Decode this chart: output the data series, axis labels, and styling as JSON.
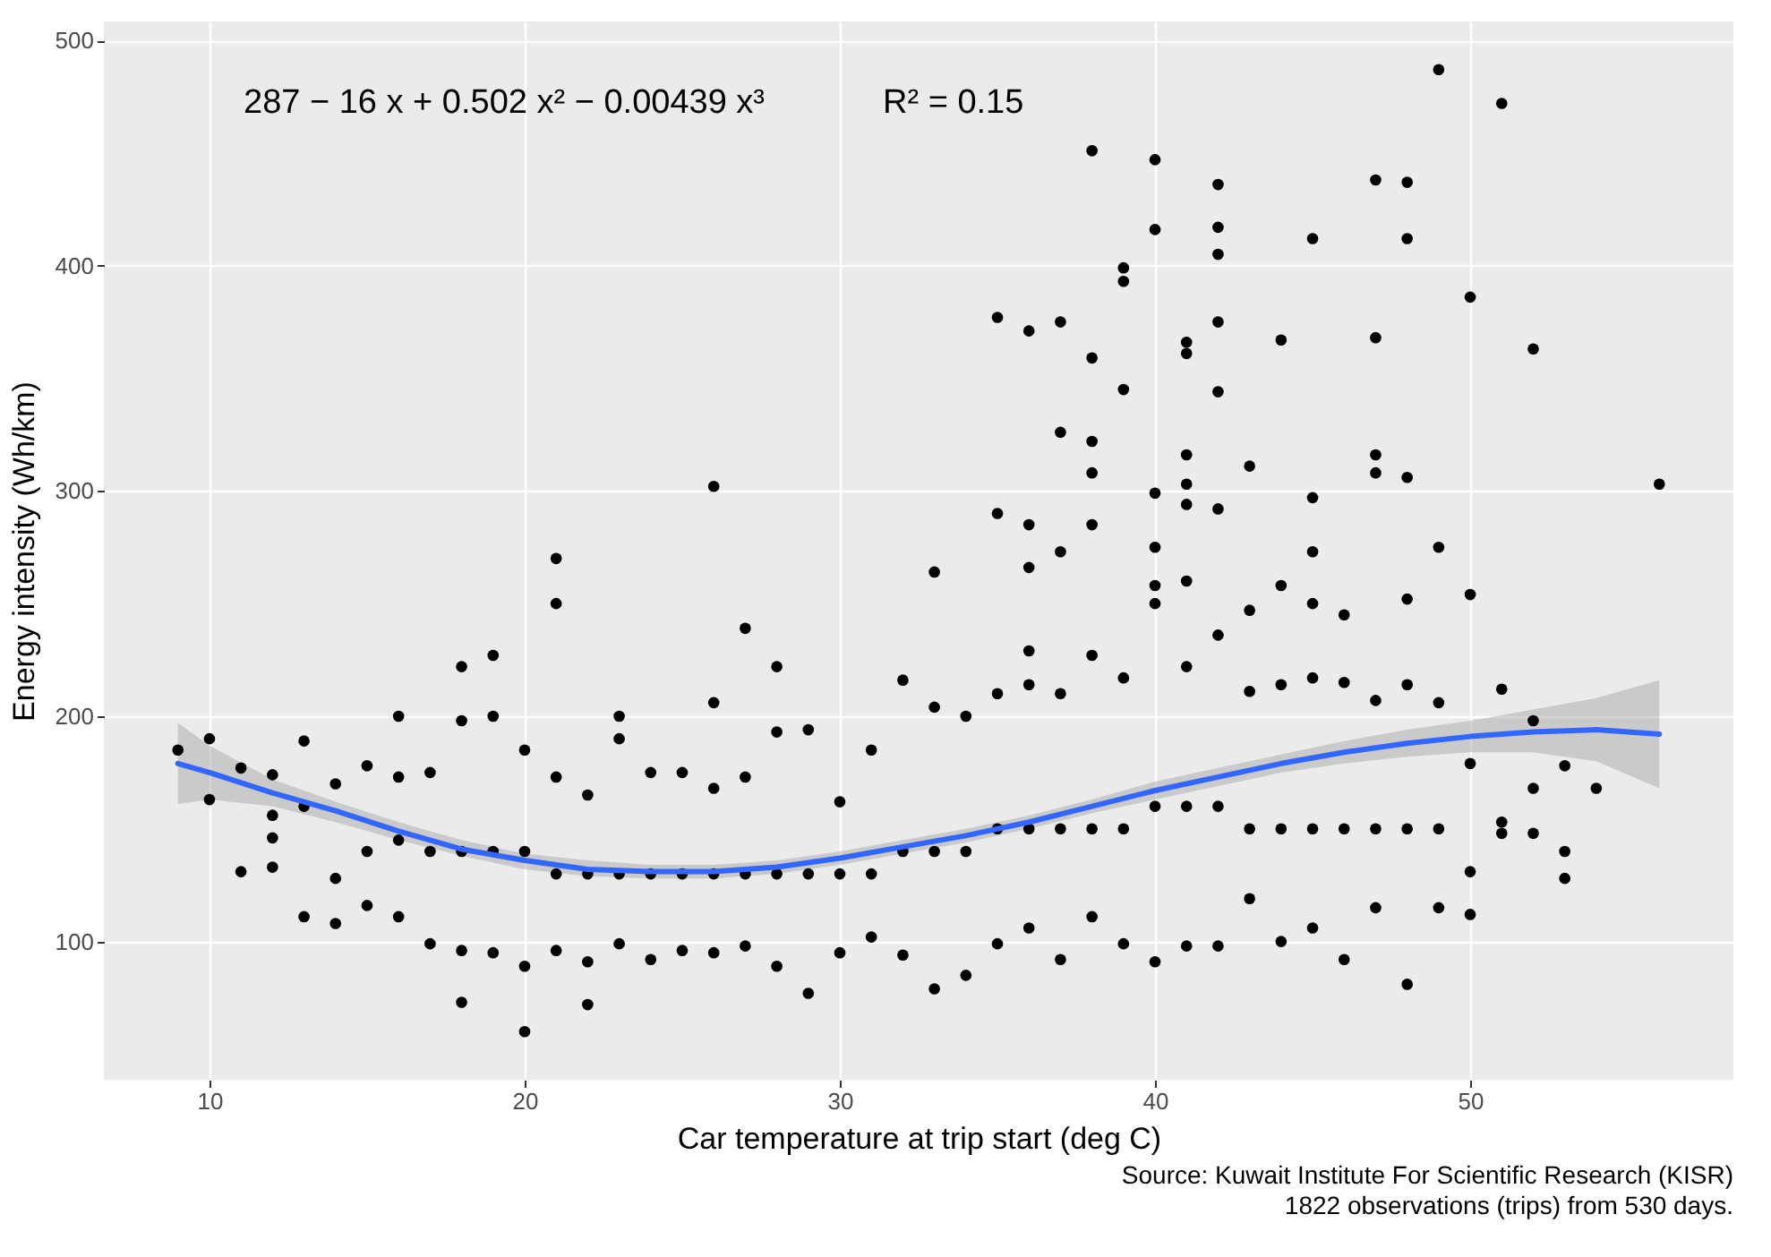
{
  "chart_data": {
    "type": "scatter",
    "xlabel": "Car temperature at trip start (deg C)",
    "ylabel": "Energy intensity (Wh/km)",
    "annotations": [
      "287 − 16 x + 0.502 x² − 0.00439 x³",
      "R² = 0.15",
      "Source: Kuwait Institute For Scientific Research (KISR)",
      "1822 observations (trips) from 530 days."
    ],
    "xlim": [
      6.65,
      58.35
    ],
    "ylim": [
      38.65,
      508.35
    ],
    "xticks": [
      10,
      20,
      30,
      40,
      50
    ],
    "yticks": [
      100,
      200,
      300,
      400,
      500
    ],
    "grid": true,
    "series": [
      {
        "color": "#000000",
        "marker": "circle",
        "x": [
          9,
          10,
          10,
          11,
          11,
          12,
          12,
          12,
          12,
          13,
          13,
          13,
          14,
          14,
          14,
          15,
          15,
          15,
          16,
          16,
          16,
          16,
          17,
          17,
          17,
          18,
          18,
          18,
          18,
          18,
          19,
          19,
          19,
          19,
          20,
          20,
          20,
          20,
          21,
          21,
          21,
          21,
          21,
          22,
          22,
          22,
          22,
          23,
          23,
          23,
          23,
          24,
          24,
          24,
          25,
          25,
          25,
          26,
          26,
          26,
          26,
          26,
          27,
          27,
          27,
          27,
          28,
          28,
          28,
          28,
          29,
          29,
          29,
          30,
          30,
          30,
          31,
          31,
          31,
          32,
          32,
          32,
          33,
          33,
          33,
          33,
          34,
          34,
          34,
          35,
          35,
          35,
          35,
          35,
          36,
          36,
          36,
          36,
          36,
          36,
          36,
          37,
          37,
          37,
          37,
          37,
          37,
          38,
          38,
          38,
          38,
          38,
          38,
          38,
          38,
          39,
          39,
          39,
          39,
          39,
          39,
          40,
          40,
          40,
          40,
          40,
          40,
          40,
          40,
          41,
          41,
          41,
          41,
          41,
          41,
          41,
          41,
          41,
          42,
          42,
          42,
          42,
          42,
          42,
          42,
          42,
          42,
          43,
          43,
          43,
          43,
          43,
          44,
          44,
          44,
          44,
          44,
          45,
          45,
          45,
          45,
          45,
          45,
          45,
          46,
          46,
          46,
          46,
          47,
          47,
          47,
          47,
          47,
          47,
          47,
          48,
          48,
          48,
          48,
          48,
          48,
          48,
          49,
          49,
          49,
          49,
          49,
          50,
          50,
          50,
          50,
          50,
          51,
          51,
          51,
          51,
          52,
          52,
          52,
          52,
          53,
          53,
          53,
          54,
          56
        ],
        "values": [
          185,
          190,
          163,
          177,
          131,
          174,
          156,
          146,
          133,
          189,
          160,
          111,
          170,
          128,
          108,
          178,
          140,
          116,
          200,
          173,
          145,
          111,
          175,
          140,
          99,
          222,
          198,
          140,
          96,
          73,
          227,
          200,
          140,
          95,
          185,
          140,
          89,
          60,
          270,
          250,
          173,
          130,
          96,
          165,
          130,
          91,
          72,
          200,
          190,
          130,
          99,
          175,
          130,
          92,
          175,
          130,
          96,
          302,
          206,
          168,
          130,
          95,
          239,
          173,
          130,
          98,
          222,
          193,
          130,
          89,
          194,
          130,
          77,
          162,
          130,
          95,
          185,
          130,
          102,
          216,
          140,
          94,
          264,
          204,
          140,
          79,
          200,
          140,
          85,
          377,
          290,
          210,
          150,
          99,
          371,
          285,
          266,
          229,
          214,
          150,
          106,
          375,
          326,
          273,
          210,
          150,
          92,
          451,
          359,
          322,
          308,
          285,
          227,
          150,
          111,
          399,
          393,
          345,
          217,
          150,
          99,
          447,
          416,
          299,
          275,
          258,
          250,
          160,
          91,
          366,
          361,
          316,
          303,
          294,
          260,
          222,
          160,
          98,
          436,
          417,
          405,
          375,
          344,
          292,
          236,
          160,
          98,
          311,
          247,
          211,
          150,
          119,
          367,
          258,
          214,
          150,
          100,
          412,
          297,
          273,
          250,
          217,
          150,
          106,
          245,
          215,
          150,
          92,
          438,
          368,
          316,
          308,
          207,
          150,
          115,
          437,
          412,
          306,
          252,
          214,
          150,
          81,
          487,
          275,
          206,
          150,
          115,
          386,
          254,
          179,
          131,
          112,
          472,
          212,
          153,
          148,
          363,
          198,
          168,
          148,
          178,
          140,
          128,
          168,
          303
        ]
      },
      {
        "type": "line",
        "color": "#3366ff",
        "x": [
          9,
          10,
          12,
          14,
          16,
          18,
          20,
          22,
          24,
          26,
          28,
          30,
          32,
          34,
          36,
          38,
          40,
          42,
          44,
          46,
          48,
          50,
          52,
          54,
          56
        ],
        "values": [
          179,
          175,
          166,
          158,
          149,
          141,
          136,
          132,
          131,
          131,
          133,
          137,
          142,
          147,
          153,
          160,
          167,
          173,
          179,
          184,
          188,
          191,
          193,
          194,
          192
        ],
        "lower": [
          161,
          163,
          160,
          153,
          145,
          138,
          132,
          129,
          128,
          128,
          130,
          134,
          139,
          144,
          150,
          157,
          163,
          169,
          175,
          179,
          182,
          184,
          184,
          180,
          168
        ],
        "upper": [
          197,
          187,
          172,
          162,
          153,
          145,
          139,
          136,
          134,
          134,
          136,
          140,
          145,
          150,
          156,
          163,
          171,
          177,
          183,
          189,
          194,
          198,
          203,
          208,
          216
        ]
      }
    ]
  }
}
